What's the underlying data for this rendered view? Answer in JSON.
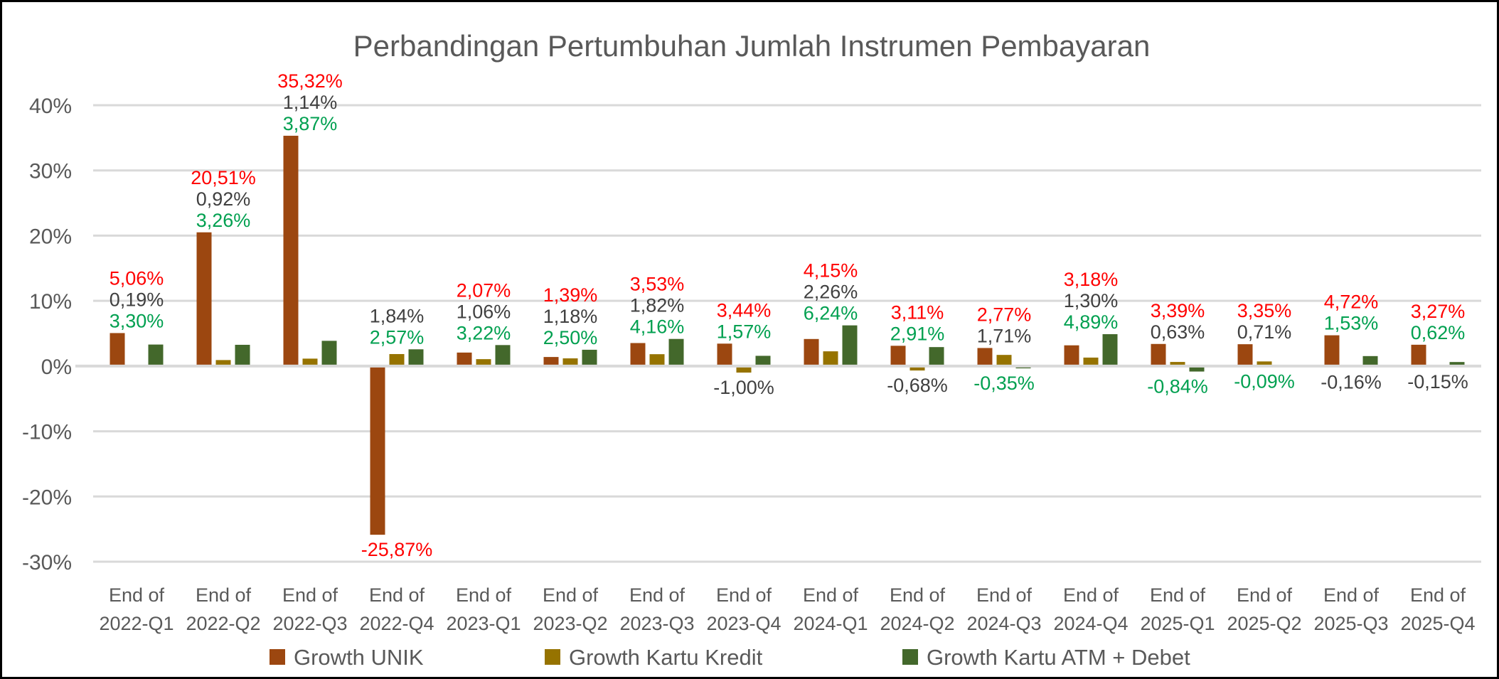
{
  "chart_data": {
    "type": "bar",
    "title": "Perbandingan Pertumbuhan Jumlah Instrumen Pembayaran",
    "xlabel": "",
    "ylabel": "",
    "ylim": [
      -30,
      40
    ],
    "yticks": [
      40,
      30,
      20,
      10,
      0,
      -10,
      -20,
      -30
    ],
    "ytick_labels": [
      "40%",
      "30%",
      "20%",
      "10%",
      "0%",
      "-10%",
      "-20%",
      "-30%"
    ],
    "grid": true,
    "legend_position": "bottom",
    "categories": [
      [
        "End of",
        "2022-Q1"
      ],
      [
        "End of",
        "2022-Q2"
      ],
      [
        "End of",
        "2022-Q3"
      ],
      [
        "End of",
        "2022-Q4"
      ],
      [
        "End of",
        "2023-Q1"
      ],
      [
        "End of",
        "2023-Q2"
      ],
      [
        "End of",
        "2023-Q3"
      ],
      [
        "End of",
        "2023-Q4"
      ],
      [
        "End of",
        "2024-Q1"
      ],
      [
        "End of",
        "2024-Q2"
      ],
      [
        "End of",
        "2024-Q3"
      ],
      [
        "End of",
        "2024-Q4"
      ],
      [
        "End of",
        "2025-Q1"
      ],
      [
        "End of",
        "2025-Q2"
      ],
      [
        "End of",
        "2025-Q3"
      ],
      [
        "End of",
        "2025-Q4"
      ]
    ],
    "series": [
      {
        "name": "Growth UNIK",
        "color": "#9C4710",
        "label_color": "#FF0000",
        "values": [
          5.06,
          20.51,
          35.32,
          -25.87,
          2.07,
          1.39,
          3.53,
          3.44,
          4.15,
          3.11,
          2.77,
          3.18,
          3.39,
          3.35,
          4.72,
          3.27
        ],
        "labels": [
          "5,06%",
          "20,51%",
          "35,32%",
          "-25,87%",
          "2,07%",
          "1,39%",
          "3,53%",
          "3,44%",
          "4,15%",
          "3,11%",
          "2,77%",
          "3,18%",
          "3,39%",
          "3,35%",
          "4,72%",
          "3,27%"
        ]
      },
      {
        "name": "Growth Kartu Kredit",
        "color": "#967300",
        "label_color": "#404040",
        "values": [
          0.19,
          0.92,
          1.14,
          1.84,
          1.06,
          1.18,
          1.82,
          -1.0,
          2.26,
          -0.68,
          1.71,
          1.3,
          0.63,
          0.71,
          -0.16,
          -0.15
        ],
        "labels": [
          "0,19%",
          "0,92%",
          "1,14%",
          "1,84%",
          "1,06%",
          "1,18%",
          "1,82%",
          "-1,00%",
          "2,26%",
          "-0,68%",
          "1,71%",
          "1,30%",
          "0,63%",
          "0,71%",
          "-0,16%",
          "-0,15%"
        ]
      },
      {
        "name": "Growth Kartu ATM + Debet",
        "color": "#43682B",
        "label_color": "#00A050",
        "values": [
          3.3,
          3.26,
          3.87,
          2.57,
          3.22,
          2.5,
          4.16,
          1.57,
          6.24,
          2.91,
          -0.35,
          4.89,
          -0.84,
          -0.09,
          1.53,
          0.62
        ],
        "labels": [
          "3,30%",
          "3,26%",
          "3,87%",
          "2,57%",
          "3,22%",
          "2,50%",
          "4,16%",
          "1,57%",
          "6,24%",
          "2,91%",
          "-0,35%",
          "4,89%",
          "-0,84%",
          "-0,09%",
          "1,53%",
          "0,62%"
        ]
      }
    ]
  }
}
